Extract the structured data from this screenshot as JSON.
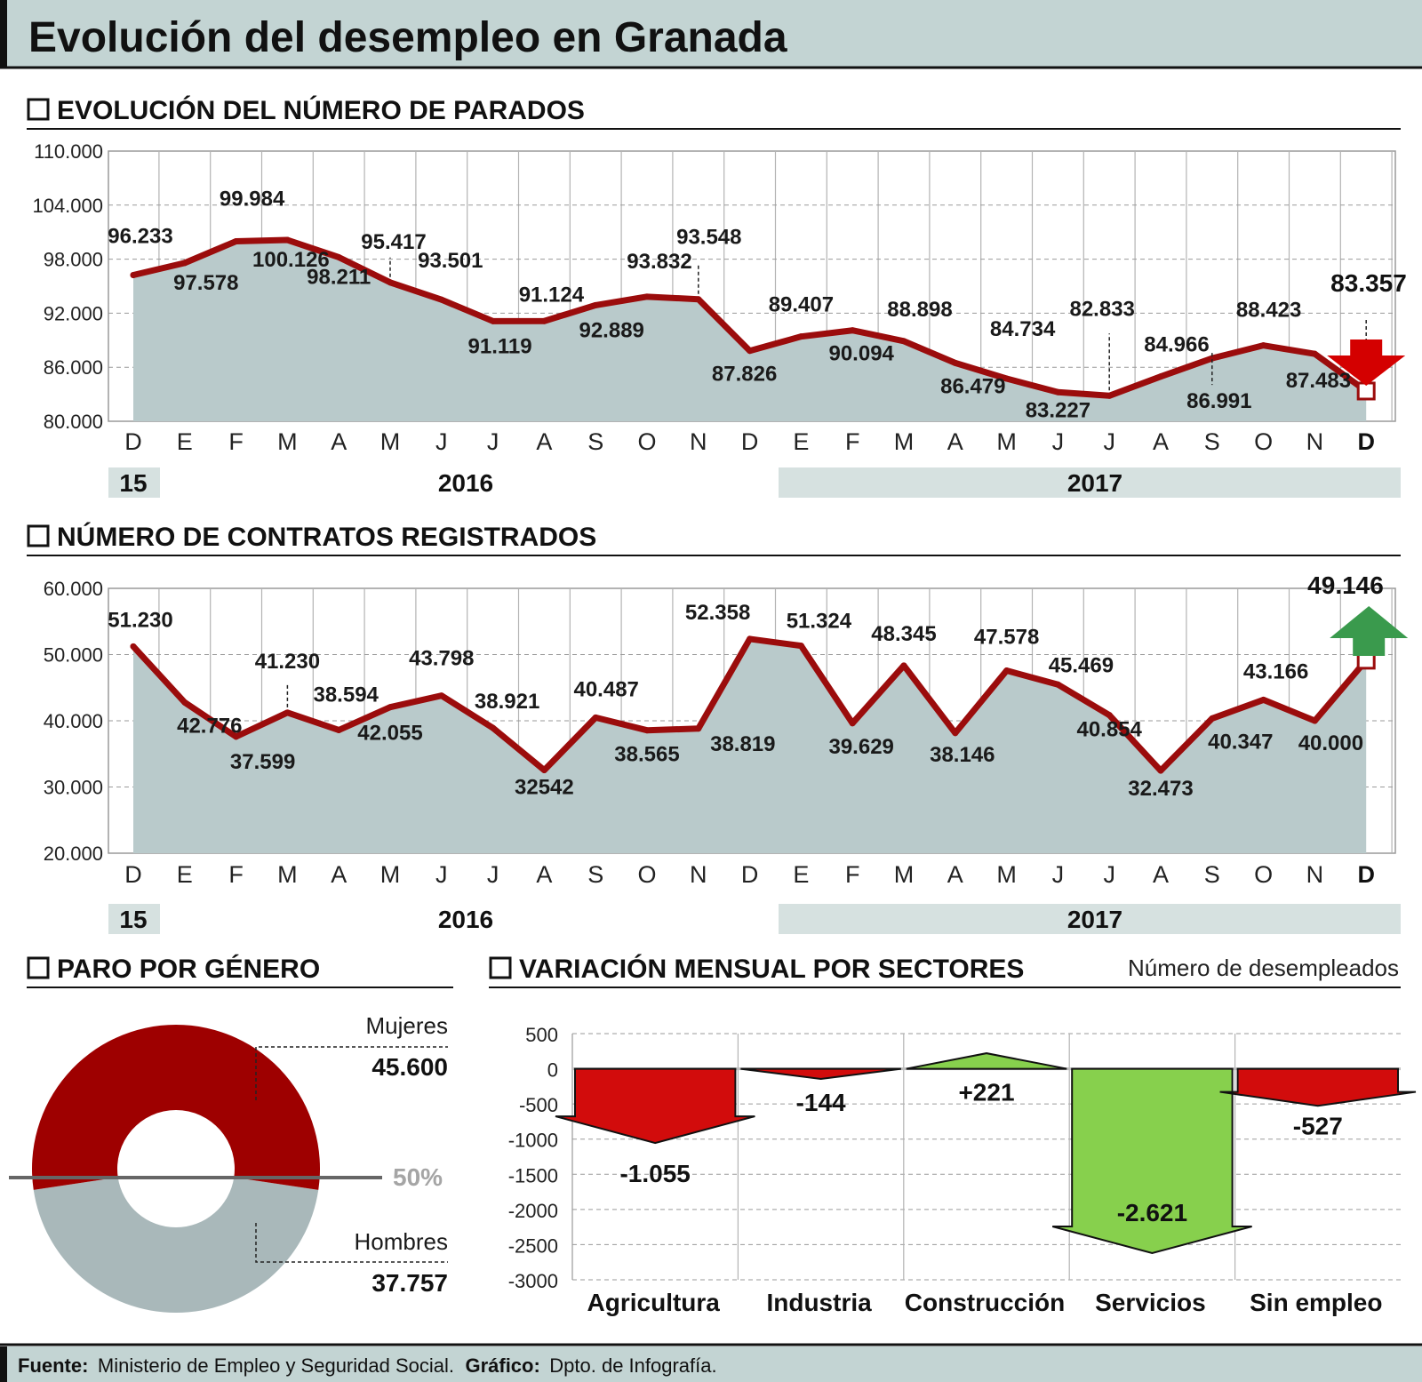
{
  "title": "Evolución del desempleo en Granada",
  "months": [
    "D",
    "E",
    "F",
    "M",
    "A",
    "M",
    "J",
    "J",
    "A",
    "S",
    "O",
    "N",
    "D",
    "E",
    "F",
    "M",
    "A",
    "M",
    "J",
    "J",
    "A",
    "S",
    "O",
    "N",
    "D"
  ],
  "year_labels": {
    "y2015": "15",
    "y2016": "2016",
    "y2017": "2017"
  },
  "colors": {
    "accent": "#9b0c0c",
    "fill": "#b9cacb",
    "down_arrow": "#d40000",
    "up_arrow": "#3a9a4d",
    "neg": "#d20c0c",
    "pos": "#87d04d",
    "mujeres": "#9e0000",
    "hombres": "#a9b8ba"
  },
  "chart_data": [
    {
      "type": "area",
      "title": "EVOLUCIÓN DEL NÚMERO DE PARADOS",
      "categories": [
        "D",
        "E",
        "F",
        "M",
        "A",
        "M",
        "J",
        "J",
        "A",
        "S",
        "O",
        "N",
        "D",
        "E",
        "F",
        "M",
        "A",
        "M",
        "J",
        "J",
        "A",
        "S",
        "O",
        "N",
        "D"
      ],
      "values": [
        96233,
        97578,
        99984,
        100126,
        98211,
        95417,
        93501,
        91119,
        91124,
        92889,
        93832,
        93548,
        87826,
        89407,
        90094,
        88898,
        86479,
        84734,
        83227,
        82833,
        84966,
        86991,
        88423,
        87483,
        83357
      ],
      "value_labels": [
        "96.233",
        "97.578",
        "99.984",
        "100.126",
        "98.211",
        "95.417",
        "93.501",
        "91.119",
        "91.124",
        "92.889",
        "93.832",
        "93.548",
        "87.826",
        "89.407",
        "90.094",
        "88.898",
        "86.479",
        "84.734",
        "83.227",
        "82.833",
        "84.966",
        "86.991",
        "88.423",
        "87.483",
        "83.357"
      ],
      "ylim": [
        80000,
        110000
      ],
      "yticks": [
        "110.000",
        "104.000",
        "98.000",
        "92.000",
        "86.000",
        "80.000"
      ],
      "trend": "down"
    },
    {
      "type": "area",
      "title": "NÚMERO DE CONTRATOS REGISTRADOS",
      "categories": [
        "D",
        "E",
        "F",
        "M",
        "A",
        "M",
        "J",
        "J",
        "A",
        "S",
        "O",
        "N",
        "D",
        "E",
        "F",
        "M",
        "A",
        "M",
        "J",
        "J",
        "A",
        "S",
        "O",
        "N",
        "D"
      ],
      "values": [
        51230,
        42776,
        37599,
        41230,
        38594,
        42055,
        43798,
        38921,
        32542,
        40487,
        38565,
        38819,
        52358,
        51324,
        39629,
        48345,
        38146,
        47578,
        45469,
        40854,
        32473,
        40347,
        43166,
        40000,
        49146
      ],
      "value_labels": [
        "51.230",
        "42.776",
        "37.599",
        "41.230",
        "38.594",
        "42.055",
        "43.798",
        "38.921",
        "32542",
        "40.487",
        "38.565",
        "38.819",
        "52.358",
        "51.324",
        "39.629",
        "48.345",
        "38.146",
        "47.578",
        "45.469",
        "40.854",
        "32.473",
        "40.347",
        "43.166",
        "40.000",
        "49.146"
      ],
      "ylim": [
        20000,
        60000
      ],
      "yticks": [
        "60.000",
        "50.000",
        "40.000",
        "30.000",
        "20.000"
      ],
      "trend": "up"
    },
    {
      "type": "pie",
      "title": "PARO POR GÉNERO",
      "slices": [
        {
          "name": "Mujeres",
          "value": 45600,
          "label": "45.600"
        },
        {
          "name": "Hombres",
          "value": 37757,
          "label": "37.757"
        }
      ],
      "reference_label": "50%"
    },
    {
      "type": "bar",
      "title": "VARIACIÓN MENSUAL POR SECTORES",
      "subtitle": "Número de desempleados",
      "categories": [
        "Agricultura",
        "Industria",
        "Construcción",
        "Servicios",
        "Sin empleo"
      ],
      "values": [
        -1055,
        -144,
        221,
        -2621,
        -527
      ],
      "value_labels": [
        "-1.055",
        "-144",
        "+221",
        "-2.621",
        "-527"
      ],
      "ylim": [
        -3000,
        500
      ],
      "yticks": [
        "500",
        "0",
        "-500",
        "-1000",
        "-1500",
        "-2000",
        "-2500",
        "-3000"
      ]
    }
  ],
  "footer": {
    "source_label": "Fuente:",
    "source_text": "Ministerio de Empleo y Seguridad Social.",
    "graphic_label": "Gráfico:",
    "graphic_text": "Dpto. de Infografía."
  }
}
